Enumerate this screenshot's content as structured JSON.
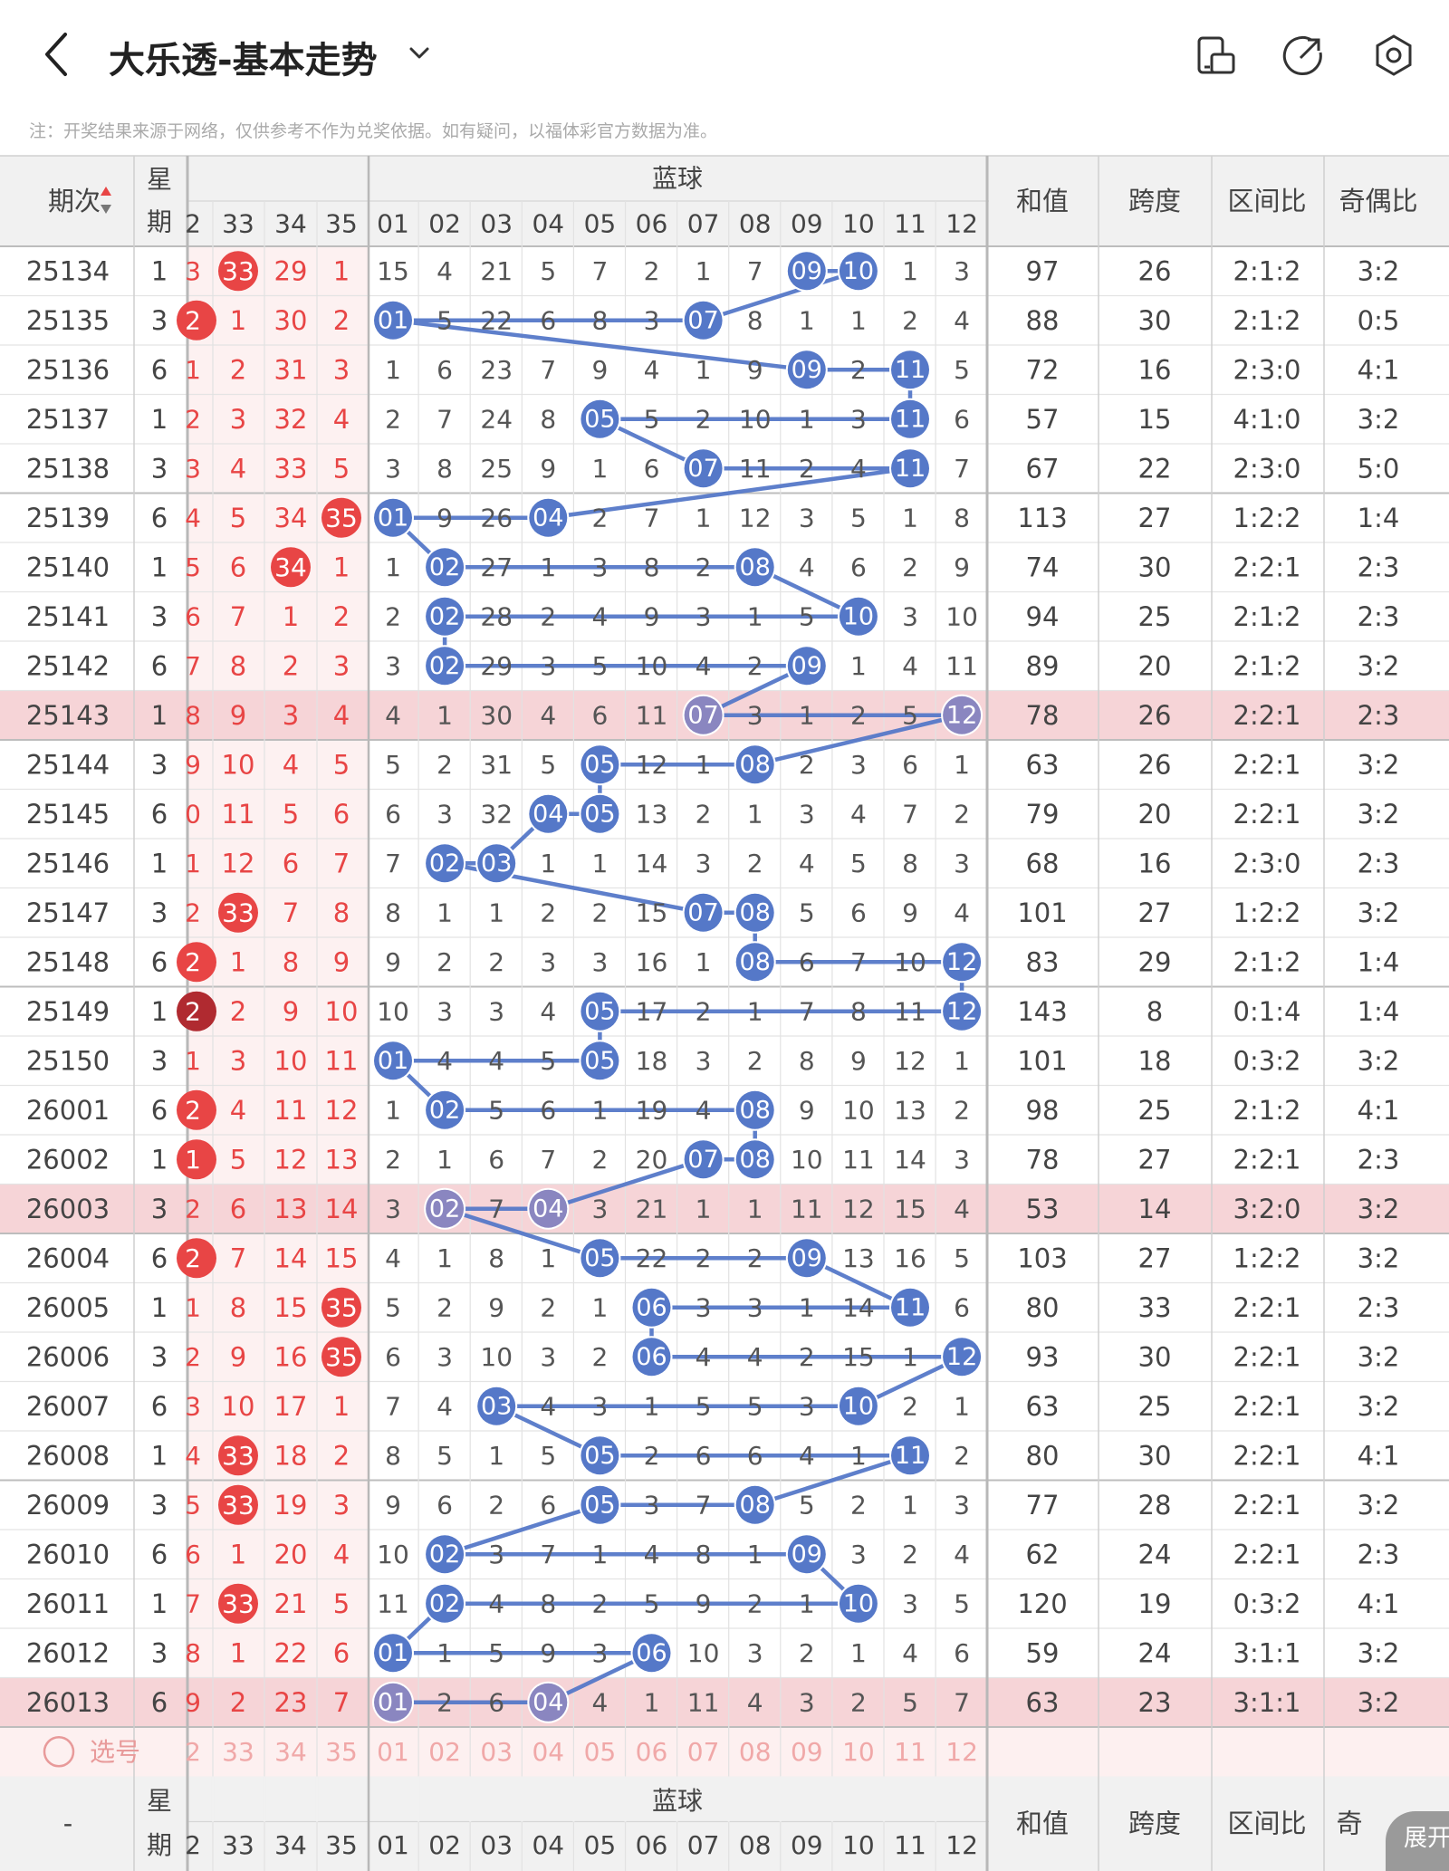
{
  "header": {
    "title": "大乐透-基本走势",
    "icons": [
      "back-icon",
      "chevron-down-icon",
      "device-icon",
      "share-icon",
      "settings-icon"
    ]
  },
  "note": "注：开奖结果来源于网络，仅供参考不作为兑奖依据。如有疑问，以福体彩官方数据为准。",
  "table": {
    "header": {
      "period": "期次",
      "sort_icon": "sort-icon",
      "weekday": [
        "星",
        "期"
      ],
      "front_partial": "2",
      "front_cols": [
        "33",
        "34",
        "35"
      ],
      "blue_label": "蓝球",
      "blue_cols": [
        "01",
        "02",
        "03",
        "04",
        "05",
        "06",
        "07",
        "08",
        "09",
        "10",
        "11",
        "12"
      ],
      "sum": "和值",
      "span": "跨度",
      "zone": "区间比",
      "odd": "奇偶比"
    },
    "rows": [
      {
        "p": "25134",
        "w": "1",
        "fp": "3",
        "f": [
          "33",
          "29",
          "1"
        ],
        "fh": [
          0
        ],
        "b": [
          "15",
          "4",
          "21",
          "5",
          "7",
          "2",
          "1",
          "7",
          "09",
          "10",
          "1",
          "3"
        ],
        "bh": [
          8,
          9
        ],
        "s": "97",
        "sp": "26",
        "z": "2:1:2",
        "o": "3:2",
        "hl": false
      },
      {
        "p": "25135",
        "w": "3",
        "fp": "2",
        "fph": true,
        "f": [
          "1",
          "30",
          "2"
        ],
        "fh": [],
        "b": [
          "01",
          "5",
          "22",
          "6",
          "8",
          "3",
          "07",
          "8",
          "1",
          "1",
          "2",
          "4"
        ],
        "bh": [
          0,
          6
        ],
        "s": "88",
        "sp": "30",
        "z": "2:1:2",
        "o": "0:5",
        "hl": false
      },
      {
        "p": "25136",
        "w": "6",
        "fp": "1",
        "f": [
          "2",
          "31",
          "3"
        ],
        "fh": [],
        "b": [
          "1",
          "6",
          "23",
          "7",
          "9",
          "4",
          "1",
          "9",
          "09",
          "2",
          "11",
          "5"
        ],
        "bh": [
          8,
          10
        ],
        "s": "72",
        "sp": "16",
        "z": "2:3:0",
        "o": "4:1",
        "hl": false
      },
      {
        "p": "25137",
        "w": "1",
        "fp": "2",
        "f": [
          "3",
          "32",
          "4"
        ],
        "fh": [],
        "b": [
          "2",
          "7",
          "24",
          "8",
          "05",
          "5",
          "2",
          "10",
          "1",
          "3",
          "11",
          "6"
        ],
        "bh": [
          4,
          10
        ],
        "s": "57",
        "sp": "15",
        "z": "4:1:0",
        "o": "3:2",
        "hl": false
      },
      {
        "p": "25138",
        "w": "3",
        "fp": "3",
        "f": [
          "4",
          "33",
          "5"
        ],
        "fh": [],
        "b": [
          "3",
          "8",
          "25",
          "9",
          "1",
          "6",
          "07",
          "11",
          "2",
          "4",
          "11",
          "7"
        ],
        "bh": [
          6,
          10
        ],
        "s": "67",
        "sp": "22",
        "z": "2:3:0",
        "o": "5:0",
        "hl": false
      },
      {
        "p": "25139",
        "w": "6",
        "fp": "4",
        "f": [
          "5",
          "34",
          "35"
        ],
        "fh": [
          2
        ],
        "b": [
          "01",
          "9",
          "26",
          "04",
          "2",
          "7",
          "1",
          "12",
          "3",
          "5",
          "1",
          "8"
        ],
        "bh": [
          0,
          3
        ],
        "s": "113",
        "sp": "27",
        "z": "1:2:2",
        "o": "1:4",
        "hl": false
      },
      {
        "p": "25140",
        "w": "1",
        "fp": "5",
        "f": [
          "6",
          "34",
          "1"
        ],
        "fh": [
          1
        ],
        "b": [
          "1",
          "02",
          "27",
          "1",
          "3",
          "8",
          "2",
          "08",
          "4",
          "6",
          "2",
          "9"
        ],
        "bh": [
          1,
          7
        ],
        "s": "74",
        "sp": "30",
        "z": "2:2:1",
        "o": "2:3",
        "hl": false
      },
      {
        "p": "25141",
        "w": "3",
        "fp": "6",
        "f": [
          "7",
          "1",
          "2"
        ],
        "fh": [],
        "b": [
          "2",
          "02",
          "28",
          "2",
          "4",
          "9",
          "3",
          "1",
          "5",
          "10",
          "3",
          "10"
        ],
        "bh": [
          1,
          9
        ],
        "s": "94",
        "sp": "25",
        "z": "2:1:2",
        "o": "2:3",
        "hl": false
      },
      {
        "p": "25142",
        "w": "6",
        "fp": "7",
        "f": [
          "8",
          "2",
          "3"
        ],
        "fh": [],
        "b": [
          "3",
          "02",
          "29",
          "3",
          "5",
          "10",
          "4",
          "2",
          "09",
          "1",
          "4",
          "11"
        ],
        "bh": [
          1,
          8
        ],
        "s": "89",
        "sp": "20",
        "z": "2:1:2",
        "o": "3:2",
        "hl": false
      },
      {
        "p": "25143",
        "w": "1",
        "fp": "8",
        "f": [
          "9",
          "3",
          "4"
        ],
        "fh": [],
        "b": [
          "4",
          "1",
          "30",
          "4",
          "6",
          "11",
          "07",
          "3",
          "1",
          "2",
          "5",
          "12"
        ],
        "bh": [
          6,
          11
        ],
        "s": "78",
        "sp": "26",
        "z": "2:2:1",
        "o": "2:3",
        "hl": true
      },
      {
        "p": "25144",
        "w": "3",
        "fp": "9",
        "f": [
          "10",
          "4",
          "5"
        ],
        "fh": [],
        "b": [
          "5",
          "2",
          "31",
          "5",
          "05",
          "12",
          "1",
          "08",
          "2",
          "3",
          "6",
          "1"
        ],
        "bh": [
          4,
          7
        ],
        "s": "63",
        "sp": "26",
        "z": "2:2:1",
        "o": "3:2",
        "hl": false
      },
      {
        "p": "25145",
        "w": "6",
        "fp": "0",
        "f": [
          "11",
          "5",
          "6"
        ],
        "fh": [],
        "b": [
          "6",
          "3",
          "32",
          "04",
          "05",
          "13",
          "2",
          "1",
          "3",
          "4",
          "7",
          "2"
        ],
        "bh": [
          3,
          4
        ],
        "s": "79",
        "sp": "20",
        "z": "2:2:1",
        "o": "3:2",
        "hl": false
      },
      {
        "p": "25146",
        "w": "1",
        "fp": "1",
        "f": [
          "12",
          "6",
          "7"
        ],
        "fh": [],
        "b": [
          "7",
          "02",
          "03",
          "1",
          "1",
          "14",
          "3",
          "2",
          "4",
          "5",
          "8",
          "3"
        ],
        "bh": [
          1,
          2
        ],
        "s": "68",
        "sp": "16",
        "z": "2:3:0",
        "o": "2:3",
        "hl": false
      },
      {
        "p": "25147",
        "w": "3",
        "fp": "2",
        "f": [
          "33",
          "7",
          "8"
        ],
        "fh": [
          0
        ],
        "b": [
          "8",
          "1",
          "1",
          "2",
          "2",
          "15",
          "07",
          "08",
          "5",
          "6",
          "9",
          "4"
        ],
        "bh": [
          6,
          7
        ],
        "s": "101",
        "sp": "27",
        "z": "1:2:2",
        "o": "3:2",
        "hl": false
      },
      {
        "p": "25148",
        "w": "6",
        "fp": "2",
        "fph": true,
        "f": [
          "1",
          "8",
          "9"
        ],
        "fh": [],
        "b": [
          "9",
          "2",
          "2",
          "3",
          "3",
          "16",
          "1",
          "08",
          "6",
          "7",
          "10",
          "12"
        ],
        "bh": [
          7,
          11
        ],
        "s": "83",
        "sp": "29",
        "z": "2:1:2",
        "o": "1:4",
        "hl": false
      },
      {
        "p": "25149",
        "w": "1",
        "fp": "2",
        "fph": true,
        "fpd": true,
        "f": [
          "2",
          "9",
          "10"
        ],
        "fh": [],
        "b": [
          "10",
          "3",
          "3",
          "4",
          "05",
          "17",
          "2",
          "1",
          "7",
          "8",
          "11",
          "12"
        ],
        "bh": [
          4,
          11
        ],
        "s": "143",
        "sp": "8",
        "z": "0:1:4",
        "o": "1:4",
        "hl": false
      },
      {
        "p": "25150",
        "w": "3",
        "fp": "1",
        "f": [
          "3",
          "10",
          "11"
        ],
        "fh": [],
        "b": [
          "01",
          "4",
          "4",
          "5",
          "05",
          "18",
          "3",
          "2",
          "8",
          "9",
          "12",
          "1"
        ],
        "bh": [
          0,
          4
        ],
        "s": "101",
        "sp": "18",
        "z": "0:3:2",
        "o": "3:2",
        "hl": false
      },
      {
        "p": "26001",
        "w": "6",
        "fp": "2",
        "fph": true,
        "f": [
          "4",
          "11",
          "12"
        ],
        "fh": [],
        "b": [
          "1",
          "02",
          "5",
          "6",
          "1",
          "19",
          "4",
          "08",
          "9",
          "10",
          "13",
          "2"
        ],
        "bh": [
          1,
          7
        ],
        "s": "98",
        "sp": "25",
        "z": "2:1:2",
        "o": "4:1",
        "hl": false
      },
      {
        "p": "26002",
        "w": "1",
        "fp": "1",
        "fph": true,
        "f": [
          "5",
          "12",
          "13"
        ],
        "fh": [],
        "b": [
          "2",
          "1",
          "6",
          "7",
          "2",
          "20",
          "07",
          "08",
          "10",
          "11",
          "14",
          "3"
        ],
        "bh": [
          6,
          7
        ],
        "s": "78",
        "sp": "27",
        "z": "2:2:1",
        "o": "2:3",
        "hl": false
      },
      {
        "p": "26003",
        "w": "3",
        "fp": "2",
        "f": [
          "6",
          "13",
          "14"
        ],
        "fh": [],
        "b": [
          "3",
          "02",
          "7",
          "04",
          "3",
          "21",
          "1",
          "1",
          "11",
          "12",
          "15",
          "4"
        ],
        "bh": [
          1,
          3
        ],
        "s": "53",
        "sp": "14",
        "z": "3:2:0",
        "o": "3:2",
        "hl": true
      },
      {
        "p": "26004",
        "w": "6",
        "fp": "2",
        "fph": true,
        "f": [
          "7",
          "14",
          "15"
        ],
        "fh": [],
        "b": [
          "4",
          "1",
          "8",
          "1",
          "05",
          "22",
          "2",
          "2",
          "09",
          "13",
          "16",
          "5"
        ],
        "bh": [
          4,
          8
        ],
        "s": "103",
        "sp": "27",
        "z": "1:2:2",
        "o": "3:2",
        "hl": false
      },
      {
        "p": "26005",
        "w": "1",
        "fp": "1",
        "f": [
          "8",
          "15",
          "35"
        ],
        "fh": [
          2
        ],
        "b": [
          "5",
          "2",
          "9",
          "2",
          "1",
          "06",
          "3",
          "3",
          "1",
          "14",
          "11",
          "6"
        ],
        "bh": [
          5,
          10
        ],
        "s": "80",
        "sp": "33",
        "z": "2:2:1",
        "o": "2:3",
        "hl": false
      },
      {
        "p": "26006",
        "w": "3",
        "fp": "2",
        "f": [
          "9",
          "16",
          "35"
        ],
        "fh": [
          2
        ],
        "b": [
          "6",
          "3",
          "10",
          "3",
          "2",
          "06",
          "4",
          "4",
          "2",
          "15",
          "1",
          "12"
        ],
        "bh": [
          5,
          11
        ],
        "s": "93",
        "sp": "30",
        "z": "2:2:1",
        "o": "3:2",
        "hl": false
      },
      {
        "p": "26007",
        "w": "6",
        "fp": "3",
        "f": [
          "10",
          "17",
          "1"
        ],
        "fh": [],
        "b": [
          "7",
          "4",
          "03",
          "4",
          "3",
          "1",
          "5",
          "5",
          "3",
          "10",
          "2",
          "1"
        ],
        "bh": [
          2,
          9
        ],
        "s": "63",
        "sp": "25",
        "z": "2:2:1",
        "o": "3:2",
        "hl": false
      },
      {
        "p": "26008",
        "w": "1",
        "fp": "4",
        "f": [
          "33",
          "18",
          "2"
        ],
        "fh": [
          0
        ],
        "b": [
          "8",
          "5",
          "1",
          "5",
          "05",
          "2",
          "6",
          "6",
          "4",
          "1",
          "11",
          "2"
        ],
        "bh": [
          4,
          10
        ],
        "s": "80",
        "sp": "30",
        "z": "2:2:1",
        "o": "4:1",
        "hl": false
      },
      {
        "p": "26009",
        "w": "3",
        "fp": "5",
        "f": [
          "33",
          "19",
          "3"
        ],
        "fh": [
          0
        ],
        "b": [
          "9",
          "6",
          "2",
          "6",
          "05",
          "3",
          "7",
          "08",
          "5",
          "2",
          "1",
          "3"
        ],
        "bh": [
          4,
          7
        ],
        "s": "77",
        "sp": "28",
        "z": "2:2:1",
        "o": "3:2",
        "hl": false
      },
      {
        "p": "26010",
        "w": "6",
        "fp": "6",
        "f": [
          "1",
          "20",
          "4"
        ],
        "fh": [],
        "b": [
          "10",
          "02",
          "3",
          "7",
          "1",
          "4",
          "8",
          "1",
          "09",
          "3",
          "2",
          "4"
        ],
        "bh": [
          1,
          8
        ],
        "s": "62",
        "sp": "24",
        "z": "2:2:1",
        "o": "2:3",
        "hl": false
      },
      {
        "p": "26011",
        "w": "1",
        "fp": "7",
        "f": [
          "33",
          "21",
          "5"
        ],
        "fh": [
          0
        ],
        "b": [
          "11",
          "02",
          "4",
          "8",
          "2",
          "5",
          "9",
          "2",
          "1",
          "10",
          "3",
          "5"
        ],
        "bh": [
          1,
          9
        ],
        "s": "120",
        "sp": "19",
        "z": "0:3:2",
        "o": "4:1",
        "hl": false
      },
      {
        "p": "26012",
        "w": "3",
        "fp": "8",
        "f": [
          "1",
          "22",
          "6"
        ],
        "fh": [],
        "b": [
          "01",
          "1",
          "5",
          "9",
          "3",
          "06",
          "10",
          "3",
          "2",
          "1",
          "4",
          "6"
        ],
        "bh": [
          0,
          5
        ],
        "s": "59",
        "sp": "24",
        "z": "3:1:1",
        "o": "3:2",
        "hl": false
      },
      {
        "p": "26013",
        "w": "6",
        "fp": "9",
        "f": [
          "2",
          "23",
          "7"
        ],
        "fh": [],
        "b": [
          "01",
          "2",
          "6",
          "04",
          "4",
          "1",
          "11",
          "4",
          "3",
          "2",
          "5",
          "7"
        ],
        "bh": [
          0,
          3
        ],
        "s": "63",
        "sp": "23",
        "z": "3:1:1",
        "o": "3:2",
        "hl": true
      }
    ],
    "select_row": {
      "label": "选号",
      "front_partial": "2",
      "front": [
        "33",
        "34",
        "35"
      ],
      "blue": [
        "01",
        "02",
        "03",
        "04",
        "05",
        "06",
        "07",
        "08",
        "09",
        "10",
        "11",
        "12"
      ]
    },
    "footer": {
      "period": "-",
      "weekday": [
        "星",
        "期"
      ],
      "front_partial": "2",
      "front_cols": [
        "33",
        "34",
        "35"
      ],
      "blue_label": "蓝球",
      "blue_cols": [
        "01",
        "02",
        "03",
        "04",
        "05",
        "06",
        "07",
        "08",
        "09",
        "10",
        "11",
        "12"
      ],
      "sum": "和值",
      "span": "跨度",
      "zone": "区间比",
      "odd": "奇"
    }
  },
  "expand_button": "展开",
  "colors": {
    "red": "#e84545",
    "dark_red": "#b02a30",
    "blue_ball": "#5578c8",
    "highlight_row": "#f6d4d7",
    "header_bg": "#f1f1f1",
    "front_bg": "#fdf1f1",
    "select_bg": "#fdf0f0"
  }
}
